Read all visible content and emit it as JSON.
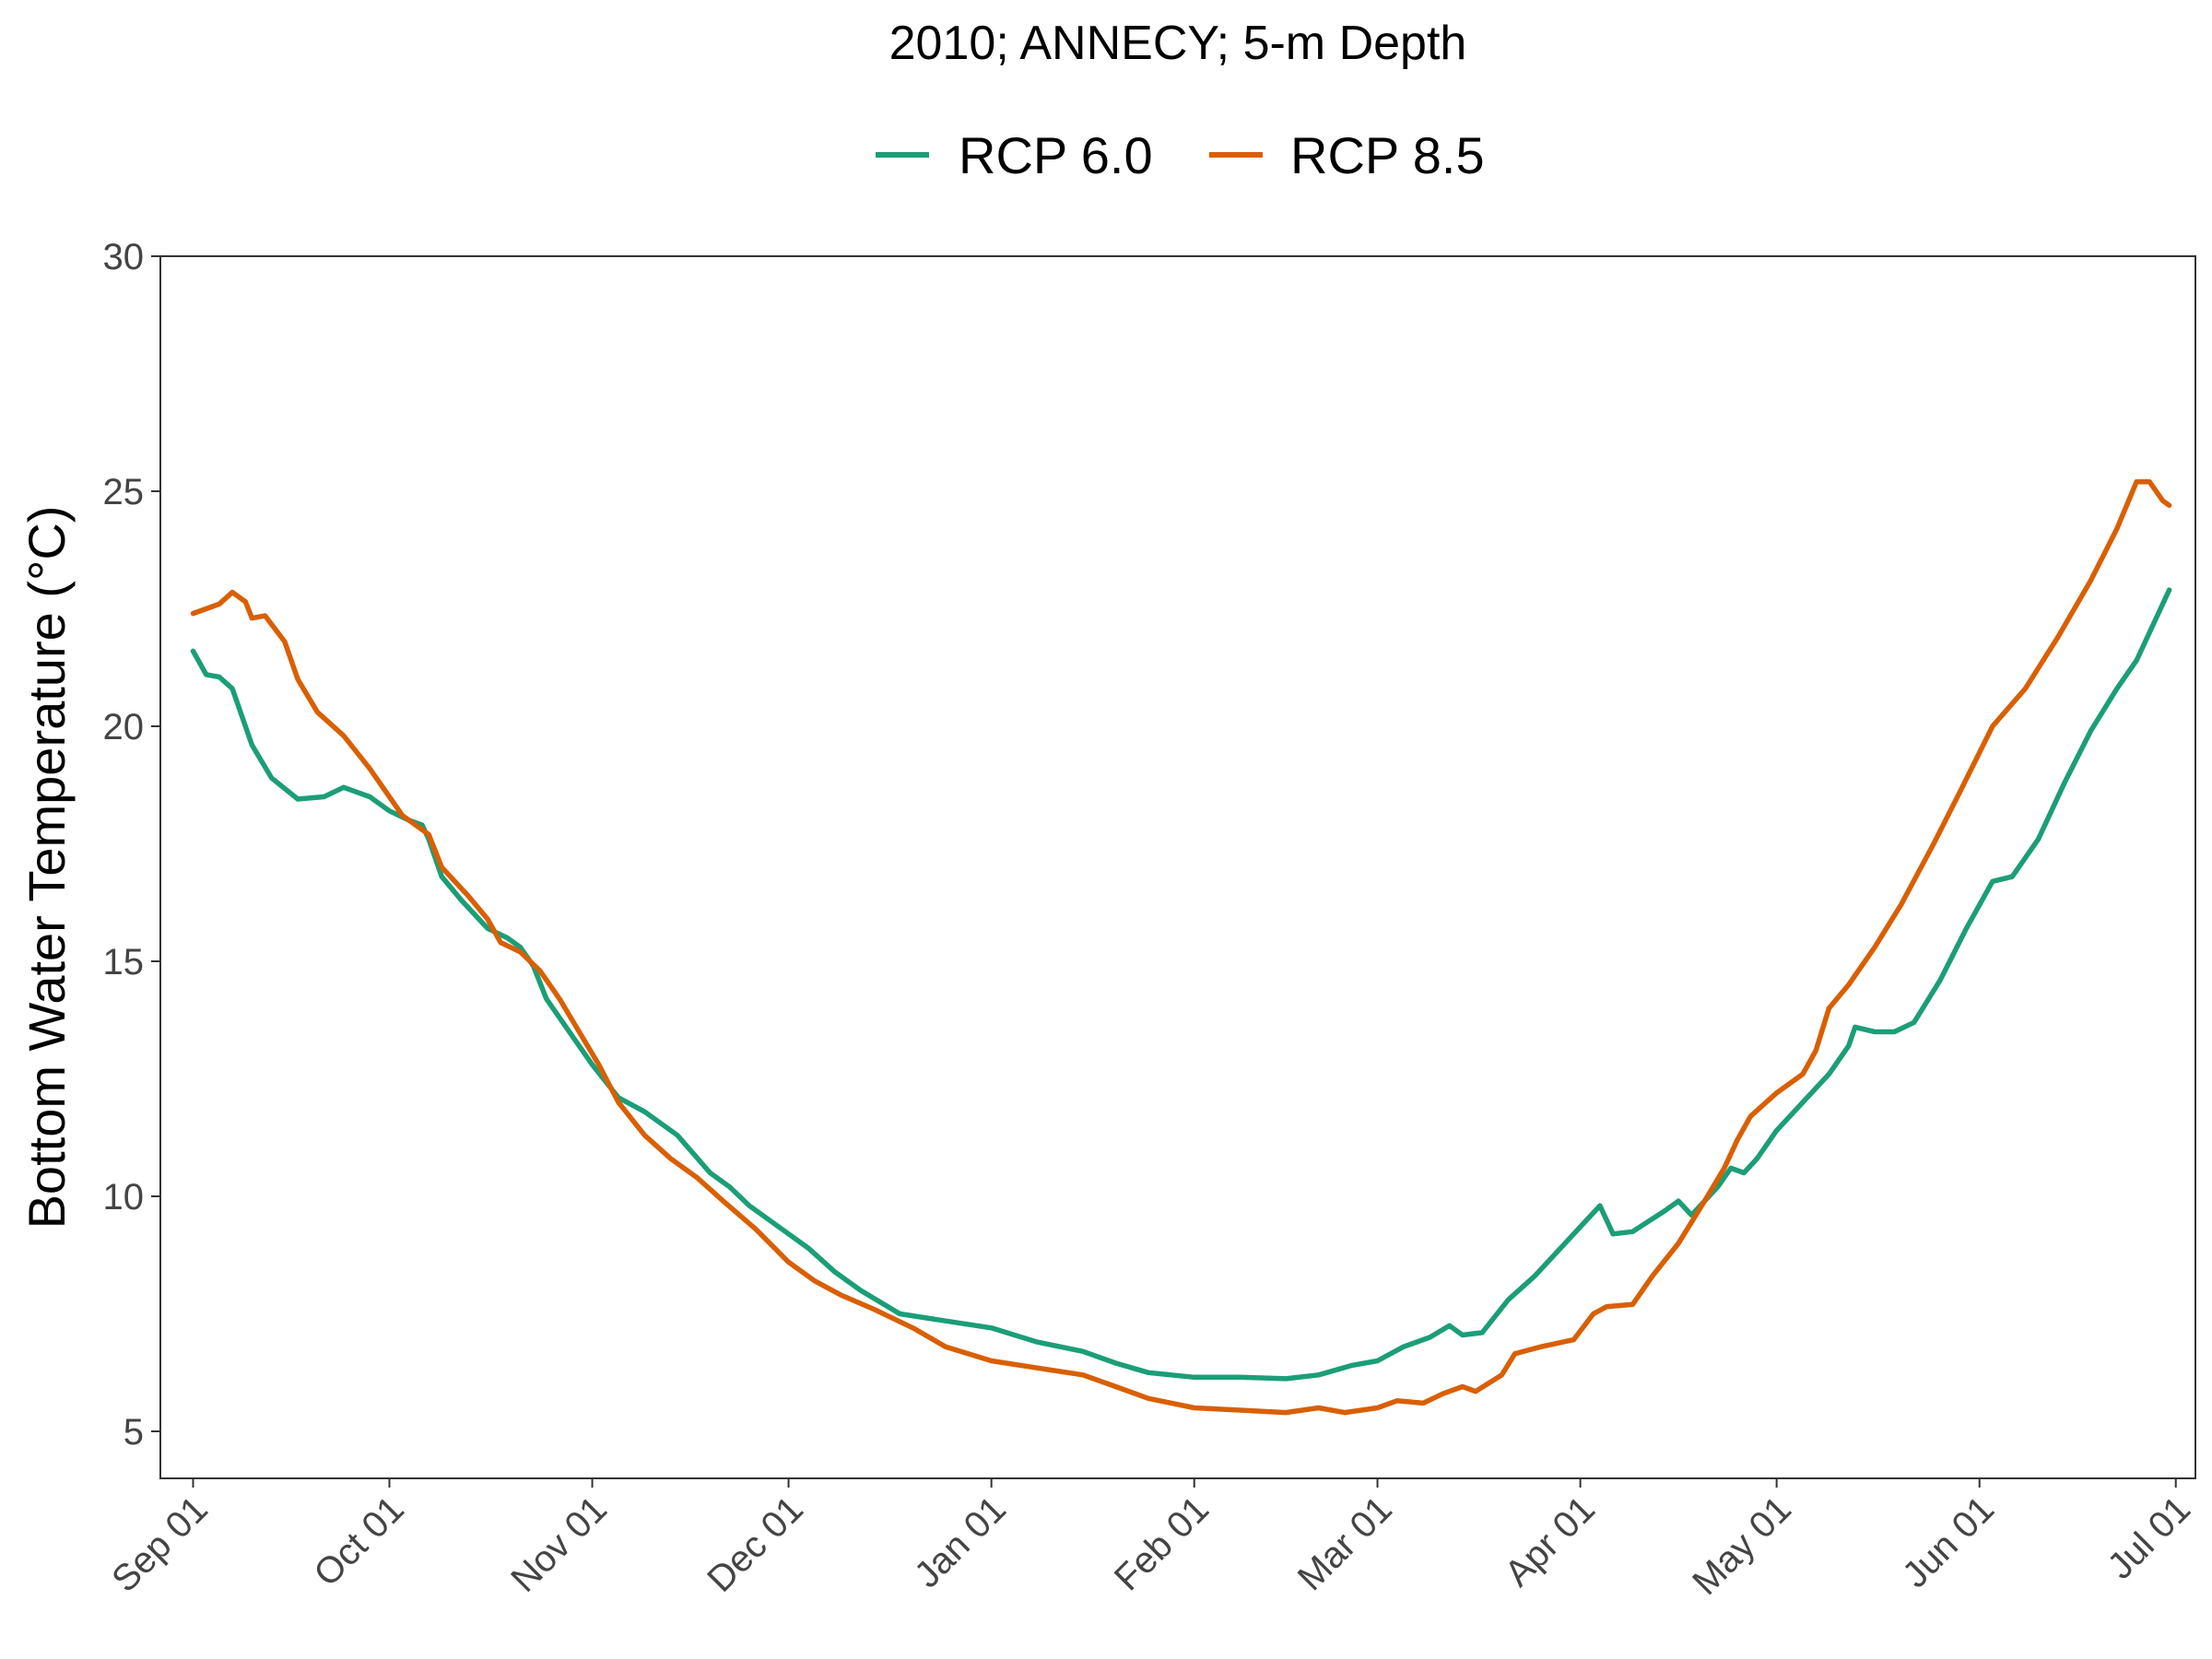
{
  "chart_data": {
    "type": "line",
    "title": "2010; ANNECY; 5-m Depth",
    "xlabel": "",
    "ylabel": "Bottom Water Temperature (°C)",
    "x_type": "date",
    "x_ticks": [
      "Sep 01",
      "Oct 01",
      "Nov 01",
      "Dec 01",
      "Jan 01",
      "Feb 01",
      "Mar 01",
      "Apr 01",
      "May 01",
      "Jun 01",
      "Jul 01"
    ],
    "x_tick_dates": [
      "2010-09-01",
      "2010-10-01",
      "2010-11-01",
      "2010-12-01",
      "2011-01-01",
      "2011-02-01",
      "2011-03-01",
      "2011-04-01",
      "2011-05-01",
      "2011-06-01",
      "2011-07-01"
    ],
    "xlim": [
      "2010-08-27",
      "2011-07-04"
    ],
    "y_ticks": [
      "5",
      "10",
      "15",
      "20",
      "25",
      "30"
    ],
    "ylim": [
      4,
      30
    ],
    "grid": false,
    "legend_position": "top",
    "series": [
      {
        "name": "RCP 6.0",
        "color": "#1b9e77",
        "points": [
          [
            "2010-09-01",
            21.6
          ],
          [
            "2010-09-03",
            21.1
          ],
          [
            "2010-09-05",
            21.05
          ],
          [
            "2010-09-07",
            20.8
          ],
          [
            "2010-09-09",
            20.0
          ],
          [
            "2010-09-10",
            19.6
          ],
          [
            "2010-09-13",
            18.9
          ],
          [
            "2010-09-17",
            18.45
          ],
          [
            "2010-09-21",
            18.5
          ],
          [
            "2010-09-24",
            18.7
          ],
          [
            "2010-09-28",
            18.5
          ],
          [
            "2010-10-01",
            18.2
          ],
          [
            "2010-10-04",
            18.0
          ],
          [
            "2010-10-06",
            17.9
          ],
          [
            "2010-10-07",
            17.6
          ],
          [
            "2010-10-09",
            16.8
          ],
          [
            "2010-10-12",
            16.3
          ],
          [
            "2010-10-16",
            15.7
          ],
          [
            "2010-10-19",
            15.5
          ],
          [
            "2010-10-21",
            15.3
          ],
          [
            "2010-10-23",
            14.9
          ],
          [
            "2010-10-25",
            14.2
          ],
          [
            "2010-10-28",
            13.6
          ],
          [
            "2010-11-01",
            12.8
          ],
          [
            "2010-11-05",
            12.1
          ],
          [
            "2010-11-09",
            11.8
          ],
          [
            "2010-11-14",
            11.3
          ],
          [
            "2010-11-19",
            10.5
          ],
          [
            "2010-11-22",
            10.2
          ],
          [
            "2010-11-25",
            9.8
          ],
          [
            "2010-11-30",
            9.3
          ],
          [
            "2010-12-04",
            8.9
          ],
          [
            "2010-12-08",
            8.4
          ],
          [
            "2010-12-12",
            8.0
          ],
          [
            "2010-12-18",
            7.5
          ],
          [
            "2010-12-25",
            7.35
          ],
          [
            "2011-01-01",
            7.2
          ],
          [
            "2011-01-08",
            6.9
          ],
          [
            "2011-01-15",
            6.7
          ],
          [
            "2011-01-20",
            6.45
          ],
          [
            "2011-01-25",
            6.25
          ],
          [
            "2011-02-01",
            6.15
          ],
          [
            "2011-02-08",
            6.15
          ],
          [
            "2011-02-15",
            6.12
          ],
          [
            "2011-02-20",
            6.2
          ],
          [
            "2011-02-25",
            6.4
          ],
          [
            "2011-03-01",
            6.5
          ],
          [
            "2011-03-05",
            6.8
          ],
          [
            "2011-03-09",
            7.0
          ],
          [
            "2011-03-12",
            7.25
          ],
          [
            "2011-03-14",
            7.05
          ],
          [
            "2011-03-17",
            7.1
          ],
          [
            "2011-03-21",
            7.8
          ],
          [
            "2011-03-25",
            8.3
          ],
          [
            "2011-03-29",
            8.9
          ],
          [
            "2011-04-02",
            9.5
          ],
          [
            "2011-04-04",
            9.8
          ],
          [
            "2011-04-06",
            9.2
          ],
          [
            "2011-04-09",
            9.25
          ],
          [
            "2011-04-14",
            9.7
          ],
          [
            "2011-04-16",
            9.9
          ],
          [
            "2011-04-18",
            9.6
          ],
          [
            "2011-04-22",
            10.2
          ],
          [
            "2011-04-24",
            10.6
          ],
          [
            "2011-04-26",
            10.5
          ],
          [
            "2011-04-28",
            10.8
          ],
          [
            "2011-05-01",
            11.4
          ],
          [
            "2011-05-05",
            12.0
          ],
          [
            "2011-05-09",
            12.6
          ],
          [
            "2011-05-12",
            13.2
          ],
          [
            "2011-05-13",
            13.6
          ],
          [
            "2011-05-16",
            13.5
          ],
          [
            "2011-05-19",
            13.5
          ],
          [
            "2011-05-22",
            13.7
          ],
          [
            "2011-05-26",
            14.6
          ],
          [
            "2011-05-30",
            15.7
          ],
          [
            "2011-06-03",
            16.7
          ],
          [
            "2011-06-06",
            16.8
          ],
          [
            "2011-06-10",
            17.6
          ],
          [
            "2011-06-14",
            18.8
          ],
          [
            "2011-06-18",
            19.9
          ],
          [
            "2011-06-22",
            20.8
          ],
          [
            "2011-06-25",
            21.4
          ],
          [
            "2011-06-30",
            22.9
          ]
        ]
      },
      {
        "name": "RCP 8.5",
        "color": "#d95f02",
        "points": [
          [
            "2010-09-01",
            22.4
          ],
          [
            "2010-09-03",
            22.5
          ],
          [
            "2010-09-05",
            22.6
          ],
          [
            "2010-09-07",
            22.85
          ],
          [
            "2010-09-09",
            22.65
          ],
          [
            "2010-09-10",
            22.3
          ],
          [
            "2010-09-12",
            22.35
          ],
          [
            "2010-09-15",
            21.8
          ],
          [
            "2010-09-17",
            21.0
          ],
          [
            "2010-09-20",
            20.3
          ],
          [
            "2010-09-24",
            19.8
          ],
          [
            "2010-09-28",
            19.1
          ],
          [
            "2010-10-01",
            18.5
          ],
          [
            "2010-10-03",
            18.1
          ],
          [
            "2010-10-07",
            17.7
          ],
          [
            "2010-10-09",
            17.0
          ],
          [
            "2010-10-13",
            16.4
          ],
          [
            "2010-10-16",
            15.9
          ],
          [
            "2010-10-18",
            15.4
          ],
          [
            "2010-10-21",
            15.2
          ],
          [
            "2010-10-24",
            14.8
          ],
          [
            "2010-10-27",
            14.2
          ],
          [
            "2010-10-30",
            13.5
          ],
          [
            "2010-11-02",
            12.8
          ],
          [
            "2010-11-05",
            12.0
          ],
          [
            "2010-11-09",
            11.3
          ],
          [
            "2010-11-13",
            10.8
          ],
          [
            "2010-11-17",
            10.4
          ],
          [
            "2010-11-21",
            9.9
          ],
          [
            "2010-11-26",
            9.3
          ],
          [
            "2010-12-01",
            8.6
          ],
          [
            "2010-12-05",
            8.2
          ],
          [
            "2010-12-09",
            7.9
          ],
          [
            "2010-12-14",
            7.6
          ],
          [
            "2010-12-20",
            7.2
          ],
          [
            "2010-12-25",
            6.8
          ],
          [
            "2011-01-01",
            6.5
          ],
          [
            "2011-01-08",
            6.35
          ],
          [
            "2011-01-15",
            6.2
          ],
          [
            "2011-01-20",
            5.95
          ],
          [
            "2011-01-25",
            5.7
          ],
          [
            "2011-02-01",
            5.5
          ],
          [
            "2011-02-08",
            5.45
          ],
          [
            "2011-02-15",
            5.4
          ],
          [
            "2011-02-20",
            5.5
          ],
          [
            "2011-02-24",
            5.4
          ],
          [
            "2011-03-01",
            5.5
          ],
          [
            "2011-03-04",
            5.65
          ],
          [
            "2011-03-08",
            5.6
          ],
          [
            "2011-03-11",
            5.8
          ],
          [
            "2011-03-14",
            5.95
          ],
          [
            "2011-03-16",
            5.85
          ],
          [
            "2011-03-20",
            6.2
          ],
          [
            "2011-03-22",
            6.65
          ],
          [
            "2011-03-26",
            6.8
          ],
          [
            "2011-03-31",
            6.95
          ],
          [
            "2011-04-03",
            7.5
          ],
          [
            "2011-04-05",
            7.65
          ],
          [
            "2011-04-09",
            7.7
          ],
          [
            "2011-04-12",
            8.3
          ],
          [
            "2011-04-16",
            9.0
          ],
          [
            "2011-04-20",
            9.9
          ],
          [
            "2011-04-23",
            10.6
          ],
          [
            "2011-04-25",
            11.2
          ],
          [
            "2011-04-27",
            11.7
          ],
          [
            "2011-05-01",
            12.2
          ],
          [
            "2011-05-03",
            12.4
          ],
          [
            "2011-05-05",
            12.6
          ],
          [
            "2011-05-07",
            13.1
          ],
          [
            "2011-05-09",
            14.0
          ],
          [
            "2011-05-12",
            14.5
          ],
          [
            "2011-05-16",
            15.3
          ],
          [
            "2011-05-20",
            16.2
          ],
          [
            "2011-05-25",
            17.5
          ],
          [
            "2011-05-29",
            18.6
          ],
          [
            "2011-06-03",
            20.0
          ],
          [
            "2011-06-08",
            20.8
          ],
          [
            "2011-06-13",
            21.9
          ],
          [
            "2011-06-18",
            23.1
          ],
          [
            "2011-06-22",
            24.2
          ],
          [
            "2011-06-25",
            25.2
          ],
          [
            "2011-06-27",
            25.2
          ],
          [
            "2011-06-29",
            24.8
          ],
          [
            "2011-06-30",
            24.7
          ]
        ]
      }
    ]
  }
}
